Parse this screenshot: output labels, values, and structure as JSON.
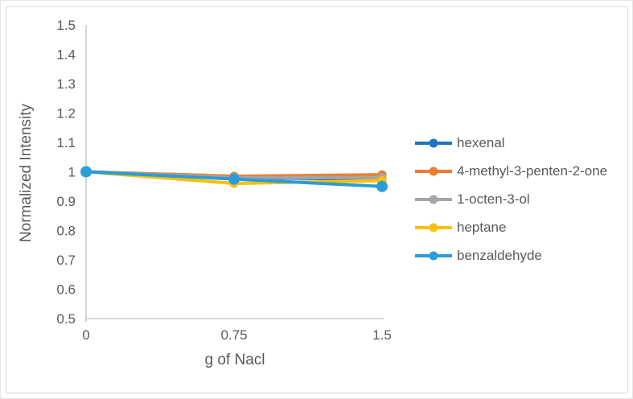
{
  "chart_data": {
    "type": "line",
    "title": "",
    "xlabel": "g of Nacl",
    "ylabel": "Normalized Intensity",
    "x": [
      0,
      0.75,
      1.5
    ],
    "xlim": [
      0,
      1.5
    ],
    "ylim": [
      0.5,
      1.5
    ],
    "x_tick_labels": [
      "0",
      "0.75",
      "1.5"
    ],
    "y_ticks": [
      1.5,
      1.4,
      1.3,
      1.2,
      1.1,
      1,
      0.9,
      0.8,
      0.7,
      0.6,
      0.5
    ],
    "y_tick_labels": [
      "1.5",
      "1.4",
      "1.3",
      "1.2",
      "1.1",
      "1",
      "0.9",
      "0.8",
      "0.7",
      "0.6",
      "0.5"
    ],
    "grid": false,
    "legend_position": "right",
    "axis_color": "#c9c9c9",
    "text_color": "#595959",
    "series": [
      {
        "name": "hexenal",
        "color": "#1e73c2",
        "values": [
          1,
          0.98,
          0.975
        ],
        "marker": "circle",
        "marker_radius": 5.5,
        "line_width": 4
      },
      {
        "name": "4-methyl-3-penten-2-one",
        "color": "#ed7d31",
        "values": [
          1,
          0.985,
          0.99
        ],
        "marker": "circle",
        "marker_radius": 5.5,
        "line_width": 4
      },
      {
        "name": "1-octen-3-ol",
        "color": "#a6a6a6",
        "values": [
          1,
          0.98,
          0.98
        ],
        "marker": "circle",
        "marker_radius": 5.5,
        "line_width": 4
      },
      {
        "name": "heptane",
        "color": "#ffc000",
        "values": [
          1,
          0.96,
          0.97
        ],
        "marker": "circle",
        "marker_radius": 5.5,
        "line_width": 4
      },
      {
        "name": "benzaldehyde",
        "color": "#2a9cd9",
        "values": [
          1,
          0.975,
          0.95
        ],
        "marker": "circle",
        "marker_radius": 7,
        "line_width": 4
      }
    ]
  }
}
